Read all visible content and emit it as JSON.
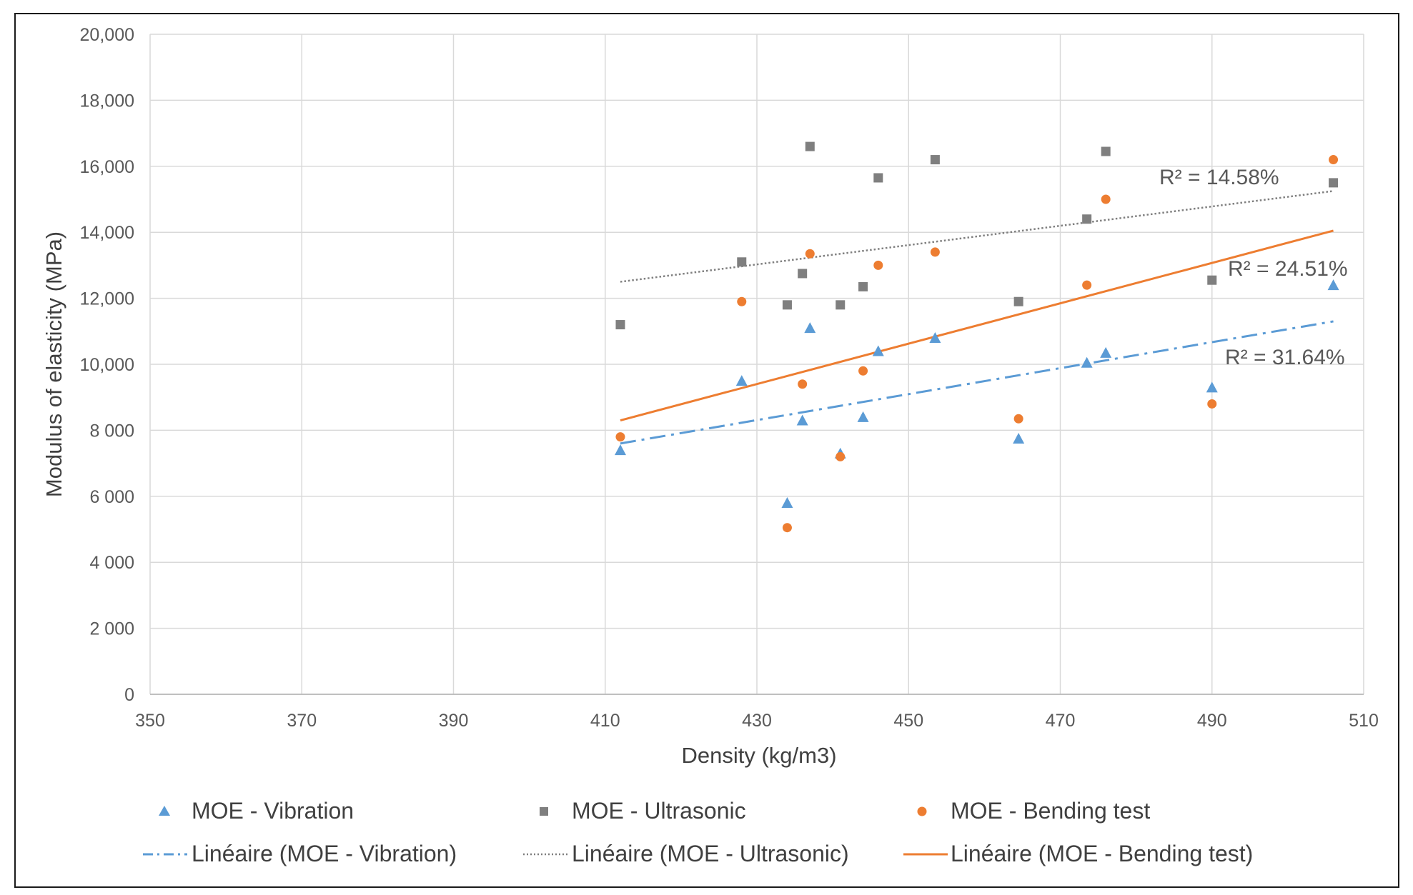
{
  "chart_data": {
    "type": "scatter",
    "title": "",
    "xlabel": "Density (kg/m3)",
    "ylabel": "Modulus of elasticity (MPa)",
    "xlim": [
      350,
      510
    ],
    "ylim": [
      0,
      20000
    ],
    "x_ticks": [
      {
        "value": 350,
        "label": "350"
      },
      {
        "value": 370,
        "label": "370"
      },
      {
        "value": 390,
        "label": "390"
      },
      {
        "value": 410,
        "label": "410"
      },
      {
        "value": 430,
        "label": "430"
      },
      {
        "value": 450,
        "label": "450"
      },
      {
        "value": 470,
        "label": "470"
      },
      {
        "value": 490,
        "label": "490"
      },
      {
        "value": 510,
        "label": "510"
      }
    ],
    "y_ticks": [
      {
        "value": 0,
        "label": "0"
      },
      {
        "value": 2000,
        "label": "2 000"
      },
      {
        "value": 4000,
        "label": "4 000"
      },
      {
        "value": 6000,
        "label": "6 000"
      },
      {
        "value": 8000,
        "label": "8 000"
      },
      {
        "value": 10000,
        "label": "10,000"
      },
      {
        "value": 12000,
        "label": "12,000"
      },
      {
        "value": 14000,
        "label": "14,000"
      },
      {
        "value": 16000,
        "label": "16,000"
      },
      {
        "value": 18000,
        "label": "18,000"
      },
      {
        "value": 20000,
        "label": "20,000"
      }
    ],
    "grid": true,
    "legend_position": "bottom",
    "series": [
      {
        "name": "MOE - Vibration",
        "marker": "triangle",
        "color": "#5b9bd5",
        "points": [
          [
            412,
            7400
          ],
          [
            428,
            9500
          ],
          [
            434,
            5800
          ],
          [
            436,
            8300
          ],
          [
            437,
            11100
          ],
          [
            441,
            7300
          ],
          [
            444,
            8400
          ],
          [
            446,
            10400
          ],
          [
            453.5,
            10800
          ],
          [
            464.5,
            7750
          ],
          [
            473.5,
            10050
          ],
          [
            476,
            10350
          ],
          [
            490,
            9300
          ],
          [
            506,
            12400
          ]
        ]
      },
      {
        "name": "MOE - Ultrasonic",
        "marker": "square",
        "color": "#7f7f7f",
        "points": [
          [
            412,
            11200
          ],
          [
            428,
            13100
          ],
          [
            434,
            11800
          ],
          [
            436,
            12750
          ],
          [
            437,
            16600
          ],
          [
            441,
            11800
          ],
          [
            444,
            12350
          ],
          [
            446,
            15650
          ],
          [
            453.5,
            16200
          ],
          [
            464.5,
            11900
          ],
          [
            473.5,
            14400
          ],
          [
            476,
            16450
          ],
          [
            490,
            12550
          ],
          [
            506,
            15500
          ]
        ]
      },
      {
        "name": "MOE - Bending test",
        "marker": "circle",
        "color": "#ed7d31",
        "points": [
          [
            412,
            7800
          ],
          [
            428,
            11900
          ],
          [
            434,
            5050
          ],
          [
            436,
            9400
          ],
          [
            437,
            13350
          ],
          [
            441,
            7200
          ],
          [
            444,
            9800
          ],
          [
            446,
            13000
          ],
          [
            453.5,
            13400
          ],
          [
            464.5,
            8350
          ],
          [
            473.5,
            12400
          ],
          [
            476,
            15000
          ],
          [
            490,
            8800
          ],
          [
            506,
            16200
          ]
        ]
      }
    ],
    "trendlines": [
      {
        "name": "Linéaire (MOE - Vibration)",
        "style": "dashdot",
        "color": "#5b9bd5",
        "x": [
          412,
          506
        ],
        "y": [
          7600,
          11300
        ],
        "r2_label": "R² = 31.64%"
      },
      {
        "name": "Linéaire (MOE - Ultrasonic)",
        "style": "dotted",
        "color": "#7f7f7f",
        "x": [
          412,
          506
        ],
        "y": [
          12500,
          15250
        ],
        "r2_label": "R² = 14.58%"
      },
      {
        "name": "Linéaire (MOE - Bending test)",
        "style": "solid",
        "color": "#ed7d31",
        "x": [
          412,
          506
        ],
        "y": [
          8300,
          14050
        ],
        "r2_label": "R² = 24.51%"
      }
    ]
  }
}
